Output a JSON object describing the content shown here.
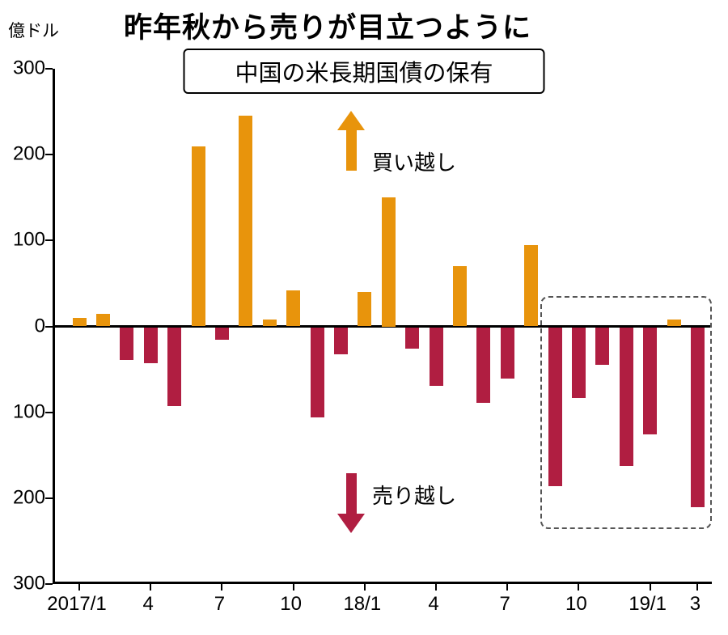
{
  "header": {
    "unit_label": "億ドル",
    "title": "昨年秋から売りが目立つように",
    "subtitle": "中国の米長期国債の保有"
  },
  "annotations": {
    "buy_label": "買い越し",
    "sell_label": "売り越し"
  },
  "colors": {
    "positive": "#E8940C",
    "negative": "#B01E41",
    "axis": "#000000",
    "highlight_border": "#555555"
  },
  "chart_data": {
    "type": "bar",
    "title": "中国の米長期国債の保有",
    "subtitle_note": "昨年秋から売りが目立つように",
    "ylabel": "億ドル",
    "ylim": [
      -300,
      300
    ],
    "grid": false,
    "legend": "none",
    "y_ticks": [
      {
        "label": "300",
        "value": 300
      },
      {
        "label": "200",
        "value": 200
      },
      {
        "label": "100",
        "value": 100
      },
      {
        "label": "0",
        "value": 0
      },
      {
        "label": "100",
        "value": -100
      },
      {
        "label": "200",
        "value": -200
      },
      {
        "label": "300",
        "value": -300
      }
    ],
    "x_ticks": [
      {
        "label": "2017/1",
        "index": 0
      },
      {
        "label": "4",
        "index": 3
      },
      {
        "label": "7",
        "index": 6
      },
      {
        "label": "10",
        "index": 9
      },
      {
        "label": "18/1",
        "index": 12
      },
      {
        "label": "4",
        "index": 15
      },
      {
        "label": "7",
        "index": 18
      },
      {
        "label": "10",
        "index": 21
      },
      {
        "label": "19/1",
        "index": 24
      },
      {
        "label": "3",
        "index": 26
      }
    ],
    "categories": [
      "2017/1",
      "2017/2",
      "2017/3",
      "2017/4",
      "2017/5",
      "2017/6",
      "2017/7",
      "2017/8",
      "2017/9",
      "2017/10",
      "2017/11",
      "2017/12",
      "2018/1",
      "2018/2",
      "2018/3",
      "2018/4",
      "2018/5",
      "2018/6",
      "2018/7",
      "2018/8",
      "2018/9",
      "2018/10",
      "2018/11",
      "2018/12",
      "2019/1",
      "2019/2",
      "2019/3"
    ],
    "values": [
      10,
      15,
      -38,
      -42,
      -92,
      210,
      -15,
      245,
      8,
      42,
      -105,
      -32,
      40,
      150,
      -25,
      -68,
      70,
      -88,
      -60,
      95,
      -185,
      -82,
      -44,
      -162,
      -125,
      8,
      -210
    ],
    "highlight_box": {
      "start_index": 20,
      "end_index": 26,
      "top_value": 35,
      "bottom_value": -236
    }
  }
}
